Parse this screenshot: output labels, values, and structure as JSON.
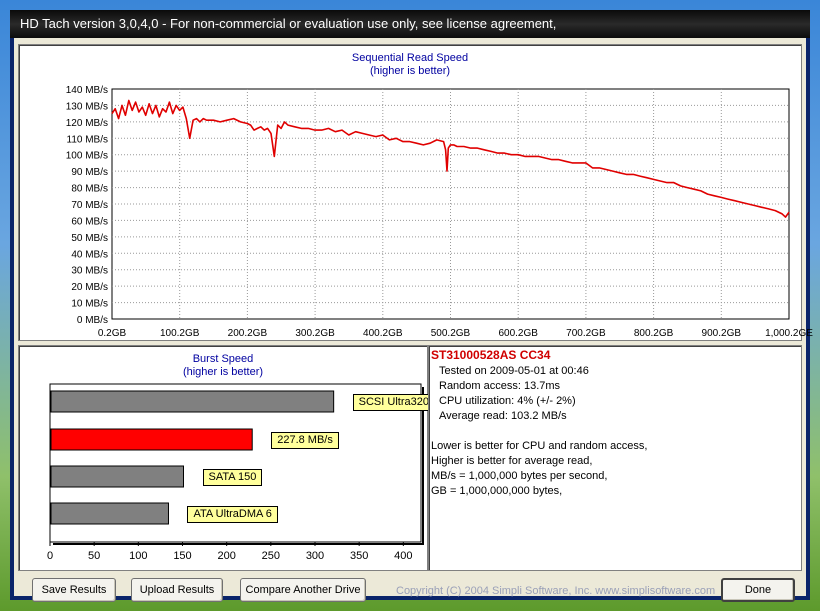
{
  "window": {
    "title": "HD Tach version 3,0,4,0  - For non-commercial or evaluation use only, see license agreement,"
  },
  "seq_chart": {
    "title": "Sequential Read Speed",
    "subtitle": "(higher is better)",
    "y_ticks": [
      "0 MB/s",
      "10 MB/s",
      "20 MB/s",
      "30 MB/s",
      "40 MB/s",
      "50 MB/s",
      "60 MB/s",
      "70 MB/s",
      "80 MB/s",
      "90 MB/s",
      "100 MB/s",
      "110 MB/s",
      "120 MB/s",
      "130 MB/s",
      "140 MB/s"
    ],
    "x_ticks": [
      "0.2GB",
      "100.2GB",
      "200.2GB",
      "300.2GB",
      "400.2GB",
      "500.2GB",
      "600.2GB",
      "700.2GB",
      "800.2GB",
      "900.2GB",
      "1,000.2GE"
    ]
  },
  "burst_chart": {
    "title": "Burst Speed",
    "subtitle": "(higher is better)",
    "x_ticks": [
      "0",
      "50",
      "100",
      "150",
      "200",
      "250",
      "300",
      "350",
      "400"
    ]
  },
  "chart_data": [
    {
      "type": "line",
      "title": "Sequential Read Speed",
      "subtitle": "(higher is better)",
      "ylabel": "",
      "xlabel": "",
      "ylim": [
        0,
        140
      ],
      "xlim": [
        0.2,
        1000.2
      ],
      "grid": true,
      "series": [
        {
          "color": "#e00000",
          "x": [
            0.2,
            5,
            10,
            15,
            20,
            25,
            30,
            35,
            40,
            45,
            50,
            55,
            60,
            65,
            70,
            75,
            80,
            85,
            90,
            95,
            100,
            105,
            110,
            115,
            120,
            125,
            130,
            135,
            140,
            150,
            160,
            170,
            180,
            190,
            200,
            205,
            210,
            215,
            220,
            225,
            230,
            235,
            240,
            245,
            250,
            255,
            260,
            270,
            280,
            290,
            300,
            310,
            320,
            330,
            340,
            350,
            360,
            370,
            380,
            390,
            400,
            410,
            420,
            430,
            440,
            450,
            460,
            470,
            480,
            490,
            493,
            495,
            497,
            500,
            505,
            510,
            520,
            530,
            540,
            550,
            560,
            570,
            580,
            590,
            600,
            610,
            620,
            630,
            640,
            650,
            660,
            670,
            680,
            690,
            700,
            710,
            720,
            730,
            740,
            750,
            760,
            770,
            780,
            790,
            800,
            810,
            820,
            830,
            840,
            850,
            860,
            870,
            880,
            890,
            900,
            910,
            920,
            930,
            940,
            950,
            960,
            970,
            980,
            990,
            995,
            1000.2
          ],
          "values": [
            125,
            128,
            122,
            130,
            124,
            133,
            127,
            132,
            126,
            129,
            124,
            131,
            125,
            130,
            123,
            128,
            126,
            132,
            125,
            130,
            127,
            129,
            122,
            110,
            121,
            122,
            120,
            122,
            121,
            121,
            120,
            121,
            122,
            120,
            119,
            118,
            115,
            116,
            117,
            115,
            116,
            113,
            99,
            118,
            116,
            120,
            118,
            117,
            116,
            116,
            115,
            115,
            116,
            114,
            115,
            112,
            114,
            113,
            112,
            111,
            112,
            109,
            110,
            108,
            108,
            107,
            106,
            107,
            109,
            108,
            103,
            90,
            104,
            106,
            106,
            105,
            105,
            104,
            104,
            103,
            102,
            101,
            101,
            100,
            100,
            99,
            99,
            99,
            98,
            97,
            97,
            96,
            95,
            95,
            95,
            92,
            92,
            91,
            90,
            89,
            88,
            88,
            87,
            86,
            85,
            84,
            83,
            83,
            81,
            80,
            79,
            78,
            76,
            75,
            74,
            73,
            72,
            71,
            70,
            69,
            68,
            67,
            66,
            64,
            62,
            65
          ]
        }
      ]
    },
    {
      "type": "bar",
      "orientation": "horizontal",
      "title": "Burst Speed",
      "subtitle": "(higher is better)",
      "xlim": [
        0,
        420
      ],
      "grid": false,
      "categories": [
        "SCSI Ultra320",
        "227.8 MB/s",
        "SATA 150",
        "ATA UltraDMA 6"
      ],
      "values": [
        320,
        227.8,
        150,
        133
      ],
      "colors": [
        "#808080",
        "#ff0000",
        "#808080",
        "#808080"
      ]
    }
  ],
  "info": {
    "drive": "ST31000528AS  CC34",
    "lines": [
      "Tested on 2009-05-01 at 00:46",
      "Random access: 13.7ms",
      "CPU utilization: 4% (+/- 2%)",
      "Average read: 103.2 MB/s"
    ],
    "notes": [
      "Lower is better for CPU and random access,",
      "Higher is better for average read,",
      "MB/s = 1,000,000 bytes per second,",
      "GB = 1,000,000,000 bytes,"
    ]
  },
  "buttons": {
    "save": "Save Results",
    "upload": "Upload Results",
    "compare": "Compare Another Drive",
    "done": "Done"
  },
  "copyright": "Copyright (C) 2004 Simpli Software, Inc. www.simplisoftware.com"
}
